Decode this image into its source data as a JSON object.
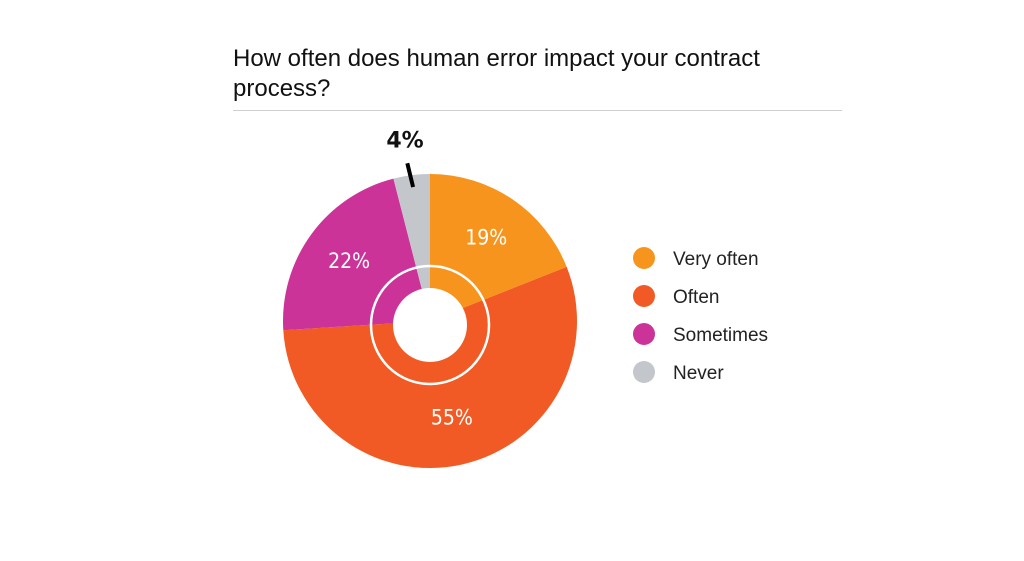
{
  "chart_data": {
    "type": "pie",
    "title": "How often does human error impact your contract process?",
    "categories": [
      "Very often",
      "Often",
      "Sometimes",
      "Never"
    ],
    "values": [
      19,
      55,
      22,
      4
    ],
    "labels": [
      "19%",
      "55%",
      "22%",
      "4%"
    ],
    "colors": [
      "#F7941D",
      "#F15A24",
      "#CC3399",
      "#C3C7CB"
    ],
    "donut": true,
    "legend_position": "right"
  }
}
